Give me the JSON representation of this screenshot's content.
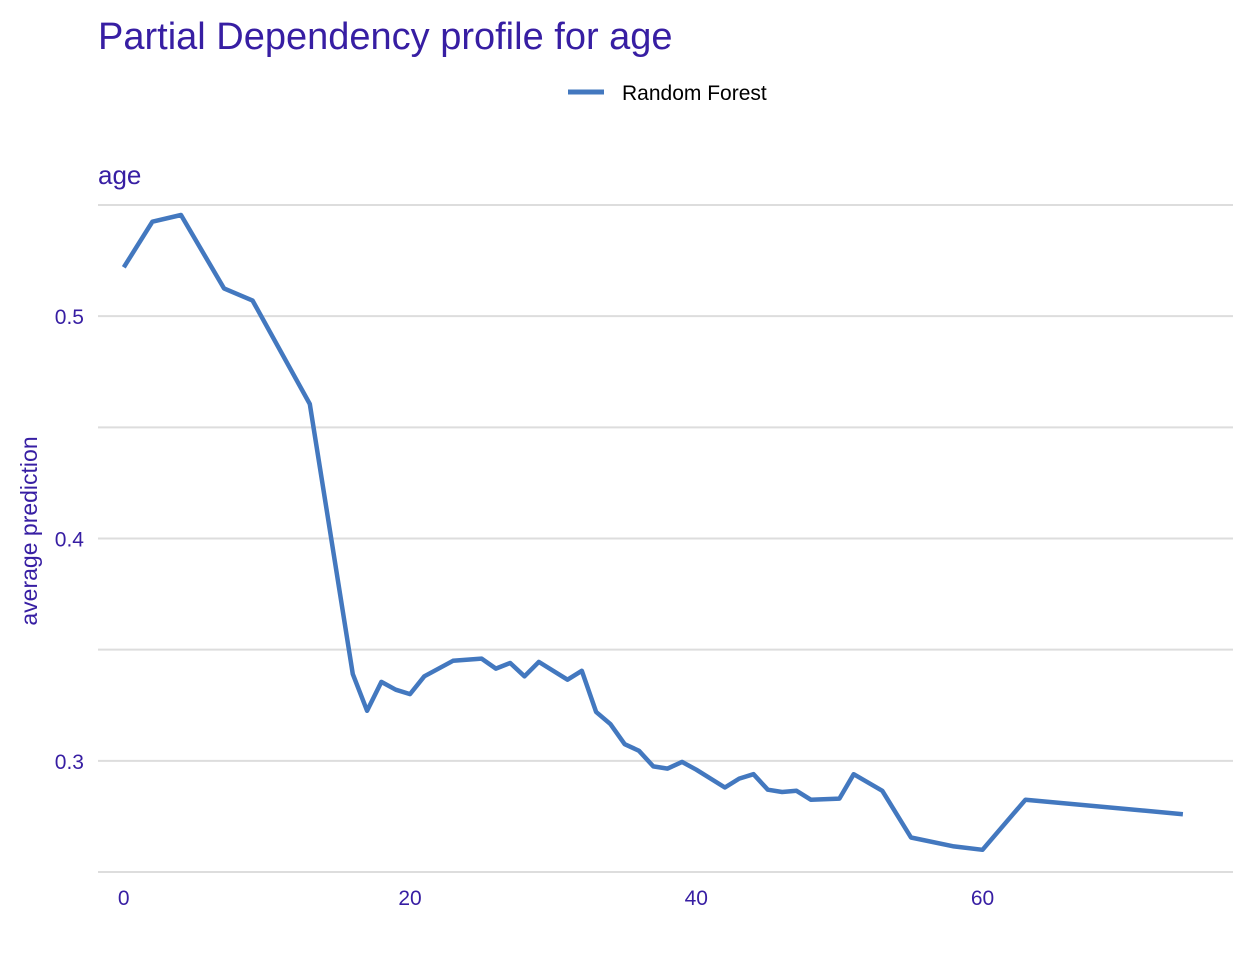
{
  "chart_data": {
    "type": "line",
    "title": "Partial Dependency profile for age",
    "subtitle": "age",
    "xlabel": "",
    "ylabel": "average prediction",
    "xlim": [
      -1.8,
      77.5
    ],
    "ylim": [
      0.25,
      0.55
    ],
    "x_ticks": [
      0,
      20,
      40,
      60
    ],
    "y_ticks": [
      0.3,
      0.4,
      0.5
    ],
    "grid": true,
    "legend_position": "top-center",
    "colors": {
      "title": "#371ea3",
      "line": "#4378bf",
      "grid": "#dddddd",
      "legend_text": "#000000"
    },
    "series": [
      {
        "name": "Random Forest",
        "x": [
          0,
          2,
          4,
          7,
          9,
          13,
          16,
          17,
          18,
          19,
          20,
          21,
          23,
          25,
          26,
          27,
          28,
          29,
          31,
          32,
          33,
          34,
          35,
          36,
          37,
          38,
          39,
          40,
          42,
          43,
          44,
          45,
          46,
          47,
          48,
          50,
          51,
          53,
          55,
          58,
          60,
          63,
          74
        ],
        "y": [
          0.522,
          0.5425,
          0.5455,
          0.5125,
          0.507,
          0.4605,
          0.339,
          0.3225,
          0.3355,
          0.332,
          0.33,
          0.338,
          0.345,
          0.346,
          0.3415,
          0.344,
          0.338,
          0.3445,
          0.3365,
          0.3405,
          0.322,
          0.3165,
          0.3075,
          0.3045,
          0.2975,
          0.2965,
          0.2995,
          0.296,
          0.288,
          0.292,
          0.294,
          0.287,
          0.286,
          0.2865,
          0.2825,
          0.283,
          0.294,
          0.2865,
          0.2655,
          0.2615,
          0.26,
          0.2825,
          0.276
        ]
      }
    ]
  }
}
